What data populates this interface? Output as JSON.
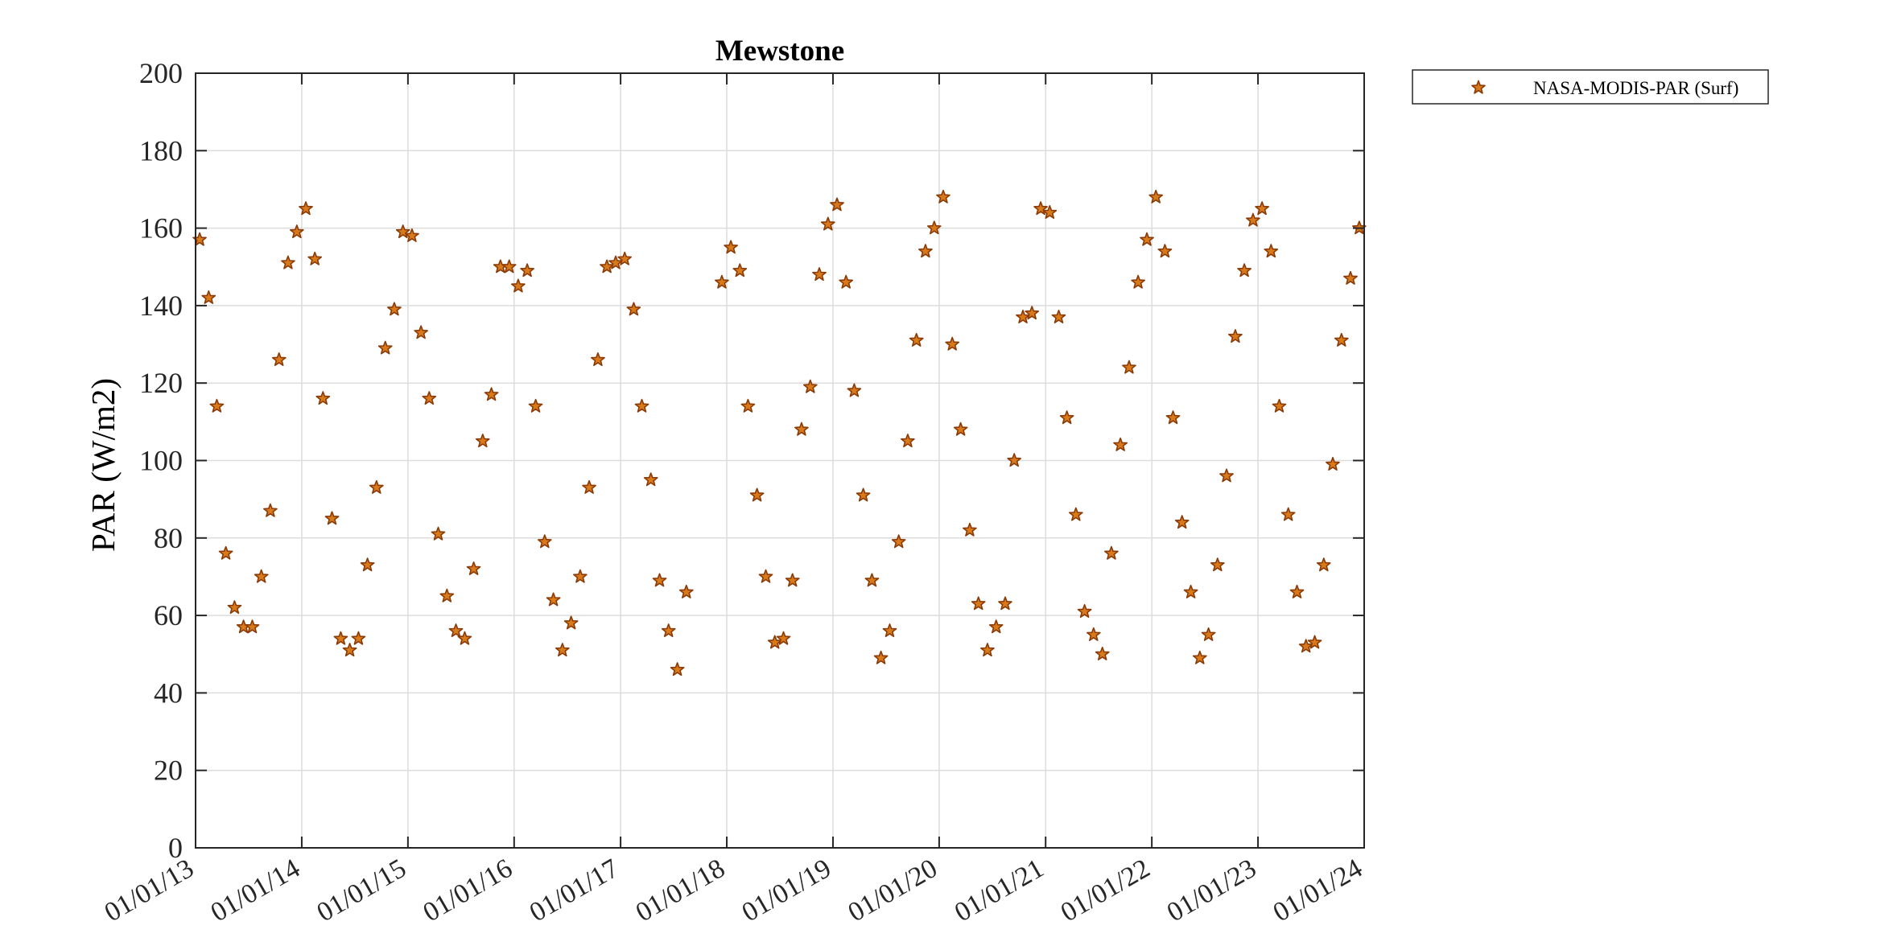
{
  "chart_data": {
    "type": "scatter",
    "title": "Mewstone",
    "xlabel": "",
    "ylabel": "PAR (W/m2)",
    "ylim": [
      0,
      200
    ],
    "yticks": [
      0,
      20,
      40,
      60,
      80,
      100,
      120,
      140,
      160,
      180,
      200
    ],
    "xlim": [
      "2013-01-01",
      "2024-01-01"
    ],
    "xticks": [
      "2013-01-01",
      "2014-01-01",
      "2015-01-01",
      "2016-01-01",
      "2017-01-01",
      "2018-01-01",
      "2019-01-01",
      "2020-01-01",
      "2021-01-01",
      "2022-01-01",
      "2023-01-01",
      "2024-01-01"
    ],
    "xtick_labels": [
      "01/01/13",
      "01/01/14",
      "01/01/15",
      "01/01/16",
      "01/01/17",
      "01/01/18",
      "01/01/19",
      "01/01/20",
      "01/01/21",
      "01/01/22",
      "01/01/23",
      "01/01/24"
    ],
    "grid": true,
    "legend_position": "outside-top-right",
    "marker_color": "#d97a1a",
    "marker_edge": "#8a3a06",
    "series": [
      {
        "name": "NASA-MODIS-PAR (Surf)",
        "marker": "star",
        "points": [
          [
            "2013-01-15",
            157
          ],
          [
            "2013-02-15",
            142
          ],
          [
            "2013-03-15",
            114
          ],
          [
            "2013-04-15",
            76
          ],
          [
            "2013-05-15",
            62
          ],
          [
            "2013-06-15",
            57
          ],
          [
            "2013-07-15",
            57
          ],
          [
            "2013-08-15",
            70
          ],
          [
            "2013-09-15",
            87
          ],
          [
            "2013-10-15",
            126
          ],
          [
            "2013-11-15",
            151
          ],
          [
            "2013-12-15",
            159
          ],
          [
            "2014-01-15",
            165
          ],
          [
            "2014-02-15",
            152
          ],
          [
            "2014-03-15",
            116
          ],
          [
            "2014-04-15",
            85
          ],
          [
            "2014-05-15",
            54
          ],
          [
            "2014-06-15",
            51
          ],
          [
            "2014-07-15",
            54
          ],
          [
            "2014-08-15",
            73
          ],
          [
            "2014-09-15",
            93
          ],
          [
            "2014-10-15",
            129
          ],
          [
            "2014-11-15",
            139
          ],
          [
            "2014-12-15",
            159
          ],
          [
            "2015-01-15",
            158
          ],
          [
            "2015-02-15",
            133
          ],
          [
            "2015-03-15",
            116
          ],
          [
            "2015-04-15",
            81
          ],
          [
            "2015-05-15",
            65
          ],
          [
            "2015-06-15",
            56
          ],
          [
            "2015-07-15",
            54
          ],
          [
            "2015-08-15",
            72
          ],
          [
            "2015-09-15",
            105
          ],
          [
            "2015-10-15",
            117
          ],
          [
            "2015-11-15",
            150
          ],
          [
            "2015-12-15",
            150
          ],
          [
            "2016-01-15",
            145
          ],
          [
            "2016-02-15",
            149
          ],
          [
            "2016-03-15",
            114
          ],
          [
            "2016-04-15",
            79
          ],
          [
            "2016-05-15",
            64
          ],
          [
            "2016-06-15",
            51
          ],
          [
            "2016-07-15",
            58
          ],
          [
            "2016-08-15",
            70
          ],
          [
            "2016-09-15",
            93
          ],
          [
            "2016-10-15",
            126
          ],
          [
            "2016-11-15",
            150
          ],
          [
            "2016-12-15",
            151
          ],
          [
            "2017-01-15",
            152
          ],
          [
            "2017-02-15",
            139
          ],
          [
            "2017-03-15",
            114
          ],
          [
            "2017-04-15",
            95
          ],
          [
            "2017-05-15",
            69
          ],
          [
            "2017-06-15",
            56
          ],
          [
            "2017-07-15",
            46
          ],
          [
            "2017-08-15",
            66
          ],
          [
            "2017-12-15",
            146
          ],
          [
            "2018-01-15",
            155
          ],
          [
            "2018-02-15",
            149
          ],
          [
            "2018-03-15",
            114
          ],
          [
            "2018-04-15",
            91
          ],
          [
            "2018-05-15",
            70
          ],
          [
            "2018-06-15",
            53
          ],
          [
            "2018-07-15",
            54
          ],
          [
            "2018-08-15",
            69
          ],
          [
            "2018-09-15",
            108
          ],
          [
            "2018-10-15",
            119
          ],
          [
            "2018-11-15",
            148
          ],
          [
            "2018-12-15",
            161
          ],
          [
            "2019-01-15",
            166
          ],
          [
            "2019-02-15",
            146
          ],
          [
            "2019-03-15",
            118
          ],
          [
            "2019-04-15",
            91
          ],
          [
            "2019-05-15",
            69
          ],
          [
            "2019-06-15",
            49
          ],
          [
            "2019-07-15",
            56
          ],
          [
            "2019-08-15",
            79
          ],
          [
            "2019-09-15",
            105
          ],
          [
            "2019-10-15",
            131
          ],
          [
            "2019-11-15",
            154
          ],
          [
            "2019-12-15",
            160
          ],
          [
            "2020-01-15",
            168
          ],
          [
            "2020-02-15",
            130
          ],
          [
            "2020-03-15",
            108
          ],
          [
            "2020-04-15",
            82
          ],
          [
            "2020-05-15",
            63
          ],
          [
            "2020-06-15",
            51
          ],
          [
            "2020-07-15",
            57
          ],
          [
            "2020-08-15",
            63
          ],
          [
            "2020-09-15",
            100
          ],
          [
            "2020-10-15",
            137
          ],
          [
            "2020-11-15",
            138
          ],
          [
            "2020-12-15",
            165
          ],
          [
            "2021-01-15",
            164
          ],
          [
            "2021-02-15",
            137
          ],
          [
            "2021-03-15",
            111
          ],
          [
            "2021-04-15",
            86
          ],
          [
            "2021-05-15",
            61
          ],
          [
            "2021-06-15",
            55
          ],
          [
            "2021-07-15",
            50
          ],
          [
            "2021-08-15",
            76
          ],
          [
            "2021-09-15",
            104
          ],
          [
            "2021-10-15",
            124
          ],
          [
            "2021-11-15",
            146
          ],
          [
            "2021-12-15",
            157
          ],
          [
            "2022-01-15",
            168
          ],
          [
            "2022-02-15",
            154
          ],
          [
            "2022-03-15",
            111
          ],
          [
            "2022-04-15",
            84
          ],
          [
            "2022-05-15",
            66
          ],
          [
            "2022-06-15",
            49
          ],
          [
            "2022-07-15",
            55
          ],
          [
            "2022-08-15",
            73
          ],
          [
            "2022-09-15",
            96
          ],
          [
            "2022-10-15",
            132
          ],
          [
            "2022-11-15",
            149
          ],
          [
            "2022-12-15",
            162
          ],
          [
            "2023-01-15",
            165
          ],
          [
            "2023-02-15",
            154
          ],
          [
            "2023-03-15",
            114
          ],
          [
            "2023-04-15",
            86
          ],
          [
            "2023-05-15",
            66
          ],
          [
            "2023-06-15",
            52
          ],
          [
            "2023-07-15",
            53
          ],
          [
            "2023-08-15",
            73
          ],
          [
            "2023-09-15",
            99
          ],
          [
            "2023-10-15",
            131
          ],
          [
            "2023-11-15",
            147
          ],
          [
            "2023-12-15",
            160
          ]
        ]
      }
    ]
  }
}
